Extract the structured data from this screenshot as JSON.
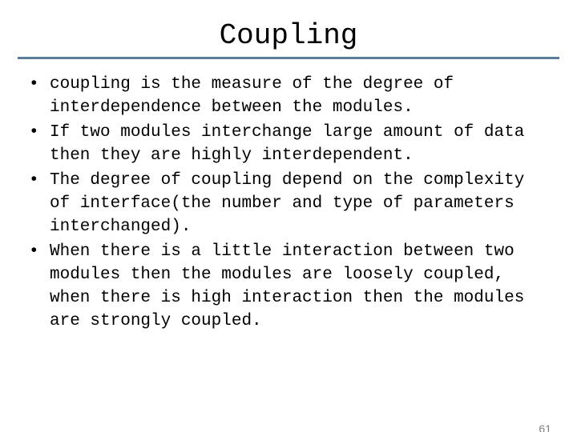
{
  "title": "Coupling",
  "rule_color": "#5b7d9a",
  "bullets": [
    "coupling is the measure of the degree of interdependence between the modules.",
    "If two modules interchange large amount of data then they are highly interdependent.",
    "The degree of coupling depend on the complexity of interface(the number and type of parameters interchanged).",
    "When there is a little interaction between two modules then the modules are loosely coupled, when there is high interaction then the modules are strongly coupled."
  ],
  "page_number": "61",
  "page_number_color": "#7f7f7f"
}
